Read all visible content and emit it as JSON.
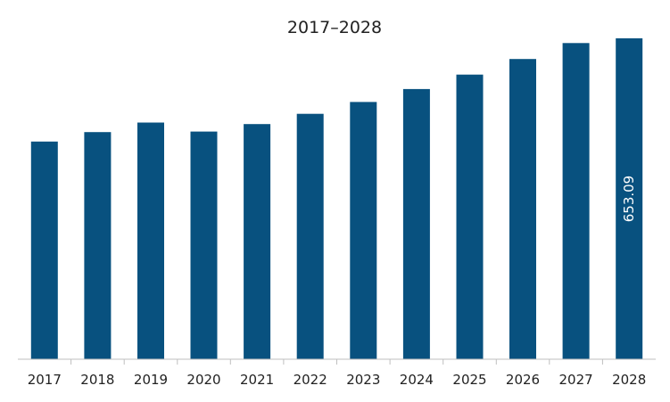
{
  "chart_data": {
    "type": "bar",
    "title": "2017–2028",
    "xlabel": "",
    "ylabel": "",
    "categories": [
      "2017",
      "2018",
      "2019",
      "2020",
      "2021",
      "2022",
      "2023",
      "2024",
      "2025",
      "2026",
      "2027",
      "2028"
    ],
    "values": [
      443.0,
      462.3,
      481.6,
      463.3,
      478.5,
      499.4,
      523.6,
      549.9,
      579.3,
      611.0,
      643.4,
      653.09
    ],
    "ylim": [
      0,
      653.09
    ],
    "bar_color": "#08517f",
    "axis_color": "#bfbfbf",
    "grid": false,
    "legend": "none",
    "data_labels": [
      {
        "index": 11,
        "text": "653.09"
      }
    ]
  }
}
